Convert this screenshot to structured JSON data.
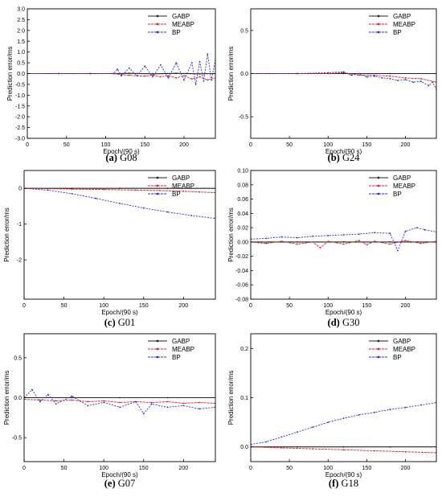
{
  "chart_data": [
    {
      "type": "line",
      "caption": {
        "prefix": "(a)",
        "name": " G08"
      },
      "xlabel": "Epoch/(90 s)",
      "ylabel": "Prediction error/ms",
      "xlim": [
        0,
        240
      ],
      "ylim": [
        -3.0,
        3.0
      ],
      "xticks": [
        0,
        50,
        100,
        150,
        200
      ],
      "xtick_labels": [
        "0",
        "50",
        "100",
        "150",
        "200"
      ],
      "yticks": [
        -3.0,
        -2.5,
        -2.0,
        -1.5,
        -1.0,
        -0.5,
        0.0,
        0.5,
        1.0,
        1.5,
        2.0,
        2.5,
        3.0
      ],
      "ytick_labels": [
        "-3.0",
        "-2.5",
        "-2.0",
        "-1.5",
        "-1.0",
        "-0.5",
        "0.0",
        "0.5",
        "1.0",
        "1.5",
        "2.0",
        "2.5",
        "3.0"
      ],
      "grid": false,
      "legend": "top-right",
      "series": [
        {
          "name": "GABP",
          "color": "#222222",
          "x": [
            0,
            40,
            80,
            110,
            130,
            160,
            190,
            220,
            240
          ],
          "y": [
            0,
            0,
            0,
            0,
            0.01,
            -0.01,
            0.01,
            -0.01,
            0
          ]
        },
        {
          "name": "MEABP",
          "color": "#e0202a",
          "x": [
            0,
            40,
            80,
            110,
            120,
            130,
            140,
            150,
            160,
            170,
            180,
            190,
            200,
            210,
            220,
            230,
            240
          ],
          "y": [
            0,
            0,
            0,
            0,
            -0.05,
            -0.08,
            -0.1,
            -0.12,
            -0.08,
            -0.15,
            -0.1,
            -0.2,
            -0.1,
            -0.25,
            -0.15,
            -0.3,
            -0.2
          ]
        },
        {
          "name": "BP",
          "color": "#2b2bd9",
          "x": [
            0,
            40,
            80,
            110,
            115,
            120,
            130,
            140,
            150,
            160,
            170,
            180,
            190,
            200,
            210,
            215,
            220,
            225,
            230,
            235,
            240
          ],
          "y": [
            0,
            0,
            0,
            0,
            0.2,
            -0.1,
            0.25,
            -0.1,
            0.35,
            -0.15,
            0.4,
            -0.2,
            0.5,
            -0.3,
            0.5,
            -0.5,
            0.55,
            -0.35,
            0.9,
            -0.3,
            0.6
          ]
        }
      ]
    },
    {
      "type": "line",
      "caption": {
        "prefix": "(b)",
        "name": " G24"
      },
      "xlabel": "Epoch/(90 s)",
      "ylabel": "Prediction error/ms",
      "xlim": [
        0,
        240
      ],
      "ylim": [
        -0.75,
        0.75
      ],
      "xticks": [
        0,
        50,
        100,
        150,
        200
      ],
      "xtick_labels": [
        "0",
        "50",
        "100",
        "150",
        "200"
      ],
      "yticks": [
        -0.5,
        0.0,
        0.5
      ],
      "ytick_labels": [
        "-0.5",
        "0.0",
        "0.5"
      ],
      "grid": false,
      "legend": "top-right",
      "series": [
        {
          "name": "GABP",
          "color": "#222222",
          "x": [
            0,
            60,
            120,
            180,
            240
          ],
          "y": [
            0,
            0,
            0,
            0,
            0
          ]
        },
        {
          "name": "MEABP",
          "color": "#e0202a",
          "x": [
            0,
            60,
            100,
            120,
            140,
            160,
            180,
            200,
            220,
            240
          ],
          "y": [
            0,
            0,
            0,
            0.01,
            -0.02,
            -0.02,
            -0.03,
            -0.05,
            -0.06,
            -0.1
          ]
        },
        {
          "name": "BP",
          "color": "#2b2bd9",
          "x": [
            0,
            60,
            100,
            120,
            130,
            140,
            150,
            160,
            170,
            180,
            190,
            200,
            210,
            220,
            230,
            235,
            240
          ],
          "y": [
            0,
            0,
            0.01,
            0.02,
            -0.02,
            0.0,
            -0.04,
            -0.03,
            -0.05,
            -0.06,
            -0.08,
            -0.07,
            -0.1,
            -0.09,
            -0.14,
            -0.1,
            -0.18
          ]
        }
      ]
    },
    {
      "type": "line",
      "caption": {
        "prefix": "(c)",
        "name": " G01"
      },
      "xlabel": "Epoch/(90 s)",
      "ylabel": "Prediction error/ms",
      "xlim": [
        0,
        240
      ],
      "ylim": [
        -3.1,
        0.5
      ],
      "xticks": [
        0,
        50,
        100,
        150,
        200
      ],
      "xtick_labels": [
        "0",
        "50",
        "100",
        "150",
        "200"
      ],
      "yticks": [
        -2,
        -1,
        0
      ],
      "ytick_labels": [
        "-2",
        "-1",
        "0"
      ],
      "grid": false,
      "legend": "top-right",
      "series": [
        {
          "name": "GABP",
          "color": "#222222",
          "x": [
            0,
            60,
            120,
            180,
            240
          ],
          "y": [
            0,
            0,
            0,
            0,
            0
          ]
        },
        {
          "name": "MEABP",
          "color": "#e0202a",
          "x": [
            0,
            60,
            100,
            140,
            170,
            200,
            220,
            240
          ],
          "y": [
            0,
            -0.02,
            -0.03,
            -0.05,
            -0.06,
            -0.08,
            -0.1,
            -0.12
          ]
        },
        {
          "name": "BP",
          "color": "#2b2bd9",
          "x": [
            0,
            30,
            60,
            90,
            120,
            150,
            180,
            210,
            240
          ],
          "y": [
            0,
            -0.05,
            -0.15,
            -0.28,
            -0.42,
            -0.55,
            -0.66,
            -0.76,
            -0.84
          ]
        }
      ]
    },
    {
      "type": "line",
      "caption": {
        "prefix": "(d)",
        "name": " G30"
      },
      "xlabel": "Epoch/(90 s)",
      "ylabel": "Prediction error/ms",
      "xlim": [
        0,
        240
      ],
      "ylim": [
        -0.08,
        0.1
      ],
      "xticks": [
        0,
        50,
        100,
        150,
        200
      ],
      "xtick_labels": [
        "0",
        "50",
        "100",
        "150",
        "200"
      ],
      "yticks": [
        -0.08,
        -0.06,
        -0.04,
        -0.02,
        0.0,
        0.02,
        0.04,
        0.06,
        0.08,
        0.1
      ],
      "ytick_labels": [
        "-0.08",
        "-0.06",
        "-0.04",
        "-0.02",
        "0.00",
        "0.02",
        "0.04",
        "0.06",
        "0.08",
        "0.10"
      ],
      "grid": false,
      "legend": "top-right",
      "series": [
        {
          "name": "GABP",
          "color": "#222222",
          "x": [
            0,
            60,
            120,
            180,
            240
          ],
          "y": [
            0,
            0,
            0,
            0,
            0
          ]
        },
        {
          "name": "MEABP",
          "color": "#e0202a",
          "x": [
            0,
            20,
            40,
            60,
            80,
            90,
            100,
            120,
            140,
            150,
            160,
            180,
            200,
            220,
            240
          ],
          "y": [
            0,
            -0.002,
            0.001,
            -0.003,
            0.0,
            -0.008,
            0.001,
            -0.003,
            0.002,
            -0.004,
            0.001,
            -0.003,
            0.002,
            -0.002,
            0.001
          ]
        },
        {
          "name": "BP",
          "color": "#2b2bd9",
          "x": [
            0,
            20,
            40,
            60,
            80,
            100,
            120,
            140,
            160,
            180,
            190,
            200,
            215,
            225,
            240
          ],
          "y": [
            0.004,
            0.005,
            0.007,
            0.006,
            0.008,
            0.009,
            0.01,
            0.011,
            0.013,
            0.012,
            -0.012,
            0.015,
            0.02,
            0.017,
            0.014
          ]
        }
      ]
    },
    {
      "type": "line",
      "caption": {
        "prefix": "(e)",
        "name": " G07"
      },
      "xlabel": "Epoch/(90 s)",
      "ylabel": "Prediction error/ms",
      "xlim": [
        0,
        240
      ],
      "ylim": [
        -0.8,
        0.8
      ],
      "xticks": [
        0,
        50,
        100,
        150,
        200
      ],
      "xtick_labels": [
        "0",
        "50",
        "100",
        "150",
        "200"
      ],
      "yticks": [
        -0.5,
        0.0,
        0.5
      ],
      "ytick_labels": [
        "-0.5",
        "0.0",
        "0.5"
      ],
      "grid": false,
      "legend": "top-right",
      "series": [
        {
          "name": "GABP",
          "color": "#222222",
          "x": [
            0,
            60,
            120,
            180,
            240
          ],
          "y": [
            0,
            0,
            0,
            0,
            0
          ]
        },
        {
          "name": "MEABP",
          "color": "#e0202a",
          "x": [
            0,
            20,
            40,
            60,
            80,
            100,
            120,
            140,
            160,
            180,
            200,
            220,
            240
          ],
          "y": [
            -0.02,
            -0.03,
            -0.04,
            -0.03,
            -0.05,
            -0.04,
            -0.06,
            -0.05,
            -0.06,
            -0.05,
            -0.07,
            -0.06,
            -0.07
          ]
        },
        {
          "name": "BP",
          "color": "#2b2bd9",
          "x": [
            0,
            10,
            20,
            30,
            40,
            60,
            80,
            100,
            120,
            140,
            150,
            160,
            180,
            200,
            220,
            240
          ],
          "y": [
            0.0,
            0.1,
            -0.05,
            0.04,
            -0.08,
            0.02,
            -0.1,
            -0.06,
            -0.12,
            -0.05,
            -0.2,
            -0.08,
            -0.12,
            -0.1,
            -0.14,
            -0.12
          ]
        }
      ]
    },
    {
      "type": "line",
      "caption": {
        "prefix": "(f)",
        "name": " G18"
      },
      "xlabel": "Epoch/(90 s)",
      "ylabel": "Prediction error/ms",
      "xlim": [
        0,
        240
      ],
      "ylim": [
        -0.03,
        0.23
      ],
      "xticks": [
        0,
        50,
        100,
        150,
        200
      ],
      "xtick_labels": [
        "0",
        "50",
        "100",
        "150",
        "200"
      ],
      "yticks": [
        0.0,
        0.1,
        0.2
      ],
      "ytick_labels": [
        "0.0",
        "0.1",
        "0.2"
      ],
      "grid": false,
      "legend": "top-right",
      "series": [
        {
          "name": "GABP",
          "color": "#222222",
          "x": [
            0,
            60,
            120,
            180,
            240
          ],
          "y": [
            0,
            0,
            0,
            0,
            0
          ]
        },
        {
          "name": "MEABP",
          "color": "#e0202a",
          "x": [
            0,
            40,
            80,
            120,
            160,
            200,
            240
          ],
          "y": [
            0,
            -0.002,
            -0.004,
            -0.006,
            -0.008,
            -0.01,
            -0.012
          ]
        },
        {
          "name": "BP",
          "color": "#2b2bd9",
          "x": [
            0,
            20,
            40,
            60,
            80,
            100,
            120,
            140,
            160,
            180,
            200,
            220,
            240
          ],
          "y": [
            0.005,
            0.01,
            0.02,
            0.03,
            0.04,
            0.05,
            0.058,
            0.065,
            0.07,
            0.076,
            0.08,
            0.085,
            0.09
          ]
        }
      ]
    }
  ]
}
